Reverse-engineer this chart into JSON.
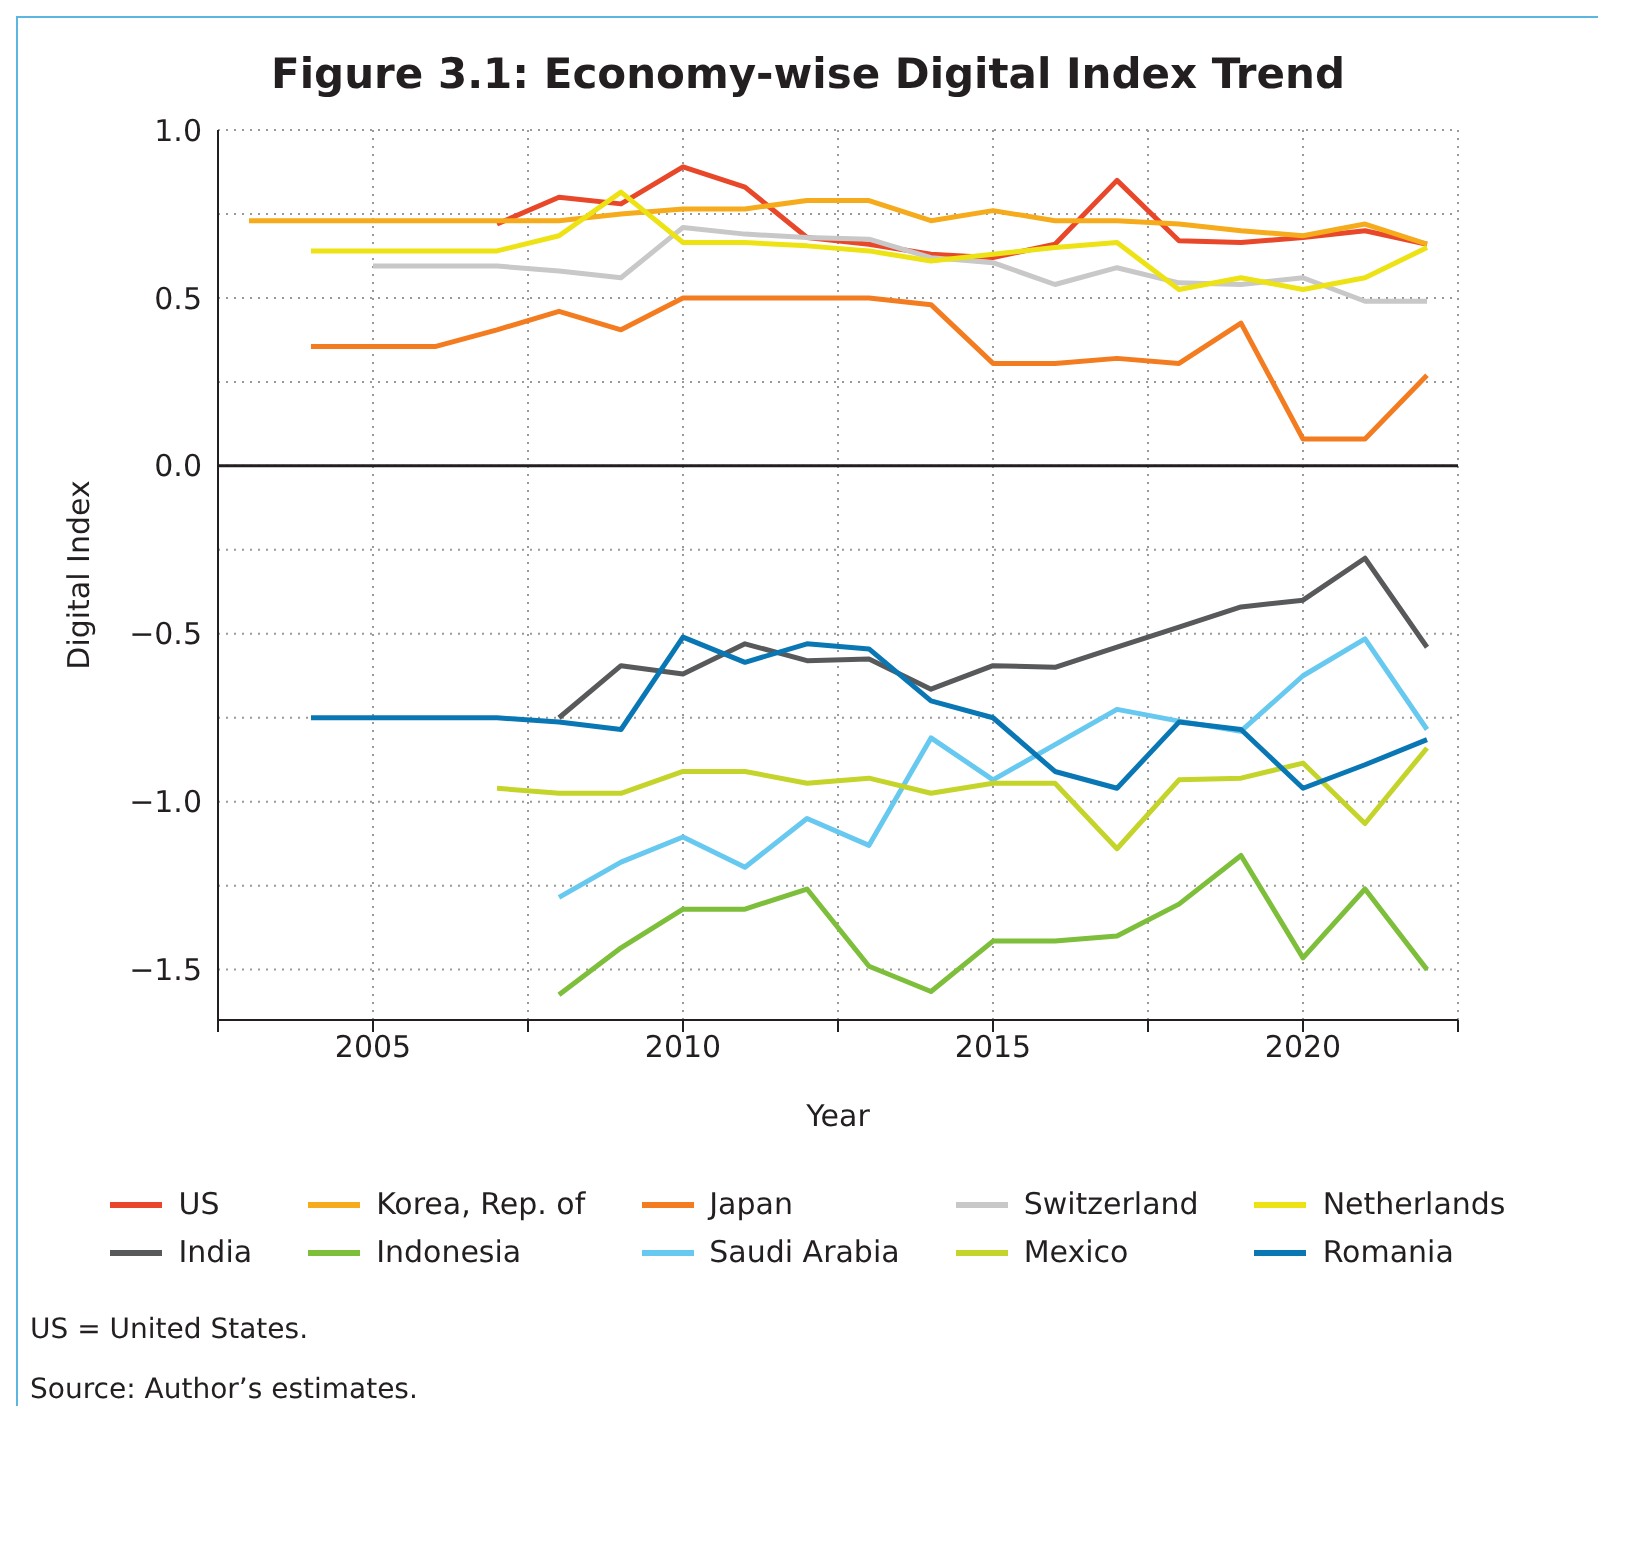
{
  "chart_data": {
    "type": "line",
    "title": "Figure 3.1: Economy-wise Digital Index Trend",
    "xlabel": "Year",
    "ylabel": "Digital Index",
    "x": [
      2003,
      2004,
      2005,
      2006,
      2007,
      2008,
      2009,
      2010,
      2011,
      2012,
      2013,
      2014,
      2015,
      2016,
      2017,
      2018,
      2019,
      2020,
      2021,
      2022
    ],
    "series": [
      {
        "name": "US",
        "color": "#e8472a",
        "values": [
          null,
          null,
          null,
          null,
          0.72,
          0.8,
          0.78,
          0.89,
          0.83,
          0.68,
          0.66,
          0.63,
          0.62,
          0.66,
          0.85,
          0.67,
          0.665,
          0.68,
          0.7,
          0.66
        ]
      },
      {
        "name": "Korea, Rep. of",
        "color": "#f5ab1b",
        "values": [
          0.73,
          0.73,
          0.73,
          0.73,
          0.73,
          0.73,
          0.75,
          0.765,
          0.765,
          0.79,
          0.79,
          0.73,
          0.76,
          0.73,
          0.73,
          0.72,
          0.7,
          0.685,
          0.72,
          0.66
        ]
      },
      {
        "name": "Japan",
        "color": "#f47c20",
        "values": [
          null,
          0.355,
          0.355,
          0.355,
          0.405,
          0.46,
          0.405,
          0.5,
          0.5,
          0.5,
          0.5,
          0.48,
          0.305,
          0.305,
          0.32,
          0.305,
          0.425,
          0.08,
          0.08,
          0.27
        ]
      },
      {
        "name": "Switzerland",
        "color": "#c8c8c8",
        "values": [
          null,
          null,
          0.595,
          0.595,
          0.595,
          0.58,
          0.56,
          0.71,
          0.69,
          0.68,
          0.675,
          0.62,
          0.605,
          0.54,
          0.59,
          0.545,
          0.54,
          0.56,
          0.49,
          0.49
        ]
      },
      {
        "name": "Netherlands",
        "color": "#ede213",
        "values": [
          null,
          0.64,
          0.64,
          0.64,
          0.64,
          0.685,
          0.815,
          0.665,
          0.665,
          0.655,
          0.64,
          0.61,
          0.63,
          0.65,
          0.665,
          0.525,
          0.56,
          0.525,
          0.56,
          0.65
        ]
      },
      {
        "name": "India",
        "color": "#58595b",
        "values": [
          null,
          null,
          null,
          null,
          null,
          -0.75,
          -0.595,
          -0.62,
          -0.53,
          -0.58,
          -0.575,
          -0.665,
          -0.595,
          -0.6,
          -0.54,
          -0.48,
          -0.42,
          -0.4,
          -0.275,
          -0.54
        ]
      },
      {
        "name": "Indonesia",
        "color": "#7dbe3a",
        "values": [
          null,
          null,
          null,
          null,
          null,
          -1.575,
          -1.435,
          -1.32,
          -1.32,
          -1.26,
          -1.49,
          -1.565,
          -1.415,
          -1.415,
          -1.4,
          -1.305,
          -1.16,
          -1.465,
          -1.26,
          -1.5
        ]
      },
      {
        "name": "Saudi Arabia",
        "color": "#67c8f0",
        "values": [
          null,
          null,
          null,
          null,
          null,
          -1.285,
          -1.18,
          -1.105,
          -1.195,
          -1.05,
          -1.13,
          -0.81,
          -0.935,
          -0.83,
          -0.725,
          -0.76,
          -0.79,
          -0.625,
          -0.515,
          -0.785
        ]
      },
      {
        "name": "Mexico",
        "color": "#c5d42a",
        "values": [
          null,
          null,
          null,
          null,
          -0.96,
          -0.975,
          -0.975,
          -0.91,
          -0.91,
          -0.945,
          -0.93,
          -0.975,
          -0.945,
          -0.945,
          -1.14,
          -0.935,
          -0.93,
          -0.885,
          -1.065,
          -0.84
        ]
      },
      {
        "name": "Romania",
        "color": "#0a77b5",
        "values": [
          null,
          -0.75,
          -0.75,
          -0.75,
          -0.75,
          -0.763,
          -0.785,
          -0.51,
          -0.585,
          -0.53,
          -0.545,
          -0.7,
          -0.75,
          -0.91,
          -0.96,
          -0.763,
          -0.785,
          -0.96,
          -0.89,
          -0.815
        ]
      }
    ],
    "xlim": [
      2002.5,
      2022.5
    ],
    "xticks": [
      {
        "value": 2002.5,
        "label": null
      },
      2005,
      {
        "value": 2007.5,
        "label": null
      },
      2010,
      {
        "value": 2012.5,
        "label": null
      },
      2015,
      {
        "value": 2017.5,
        "label": null
      },
      2020,
      {
        "value": 2022.5,
        "label": null
      }
    ],
    "ylim": [
      -1.65,
      1.0
    ],
    "yticks": [
      {
        "value": -1.5,
        "label": "−1.5"
      },
      {
        "value": -1.25,
        "label": null
      },
      {
        "value": -1.0,
        "label": "−1.0"
      },
      {
        "value": -0.75,
        "label": null
      },
      {
        "value": -0.5,
        "label": "−0.5"
      },
      {
        "value": -0.25,
        "label": null
      },
      {
        "value": 0,
        "label": "0.0"
      },
      {
        "value": 0.25,
        "label": null
      },
      {
        "value": 0.5,
        "label": "0.5"
      },
      {
        "value": 0.75,
        "label": null
      },
      {
        "value": 1.0,
        "label": "1.0"
      }
    ],
    "ref_lines": [
      {
        "axis": "y",
        "value": 0,
        "color": "#231f20"
      }
    ],
    "grid": true,
    "legend": "bottom",
    "marker": "none",
    "line_style": "solid",
    "annotations": [
      "US = United States.",
      "Source: Author’s estimates."
    ]
  }
}
